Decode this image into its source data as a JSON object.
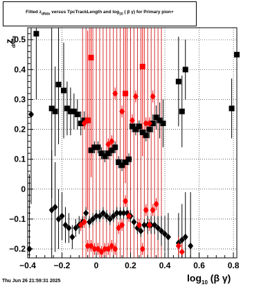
{
  "title": {
    "pre": "Fitted  z",
    "sub": "dNdx",
    "post": "  versus TpcTrackLength and log",
    "sub2": "10",
    "post2": " ( β γ) for Primary pion+"
  },
  "ylabel": {
    "main": "z",
    "sub": "dNdx"
  },
  "xlabel": {
    "main": "log",
    "sub": "10",
    "post": "(β γ)"
  },
  "datestamp": "Thu Jun 26 21:59:31 2025",
  "colors": {
    "black_series": "#000000",
    "red_series": "#ff0000",
    "axis": "#000000",
    "grid": "#000000"
  },
  "chart_data": {
    "type": "scatter",
    "xlim": [
      -0.4,
      0.82
    ],
    "ylim": [
      -0.23,
      0.54
    ],
    "grid": true,
    "x_ticks": [
      -0.4,
      -0.2,
      0,
      0.2,
      0.4,
      0.6,
      0.8
    ],
    "x_tick_labels": [
      "−0.4",
      "−0.2",
      "0",
      "0.2",
      "0.4",
      "0.6",
      "0.8"
    ],
    "y_ticks": [
      -0.2,
      -0.1,
      0,
      0.1,
      0.2,
      0.3,
      0.4,
      0.5
    ],
    "y_tick_labels": [
      "−0.2",
      "−0.1",
      "0",
      "0.1",
      "0.2",
      "0.3",
      "0.4",
      "0.5"
    ],
    "series": [
      {
        "marker": "square",
        "color": "#000000",
        "points": [
          {
            "x": -0.35,
            "y": 0.52,
            "yerr": 0.22
          },
          {
            "x": -0.26,
            "y": 0.27,
            "yerr": 0.3
          },
          {
            "x": -0.24,
            "y": 0.26,
            "yerr": 0.15
          },
          {
            "x": -0.22,
            "y": 0.35,
            "yerr": 0.2
          },
          {
            "x": -0.19,
            "y": 0.33,
            "yerr": 0.16
          },
          {
            "x": -0.17,
            "y": 0.27,
            "yerr": 0.09
          },
          {
            "x": -0.15,
            "y": 0.26,
            "yerr": 0.08
          },
          {
            "x": -0.13,
            "y": 0.26,
            "yerr": 0.06
          },
          {
            "x": -0.11,
            "y": 0.25,
            "yerr": 0.05
          },
          {
            "x": -0.09,
            "y": 0.22,
            "yerr": 0.04
          },
          {
            "x": -0.07,
            "y": 0.23,
            "yerr": 0.03
          },
          {
            "x": -0.05,
            "y": 0.23,
            "yerr": 0.02
          },
          {
            "x": -0.03,
            "y": 0.13,
            "yerr": 0.02
          },
          {
            "x": -0.01,
            "y": 0.14,
            "yerr": 0.02
          },
          {
            "x": 0.01,
            "y": 0.14,
            "yerr": 0.02
          },
          {
            "x": 0.03,
            "y": 0.12,
            "yerr": 0.02
          },
          {
            "x": 0.05,
            "y": 0.11,
            "yerr": 0.02
          },
          {
            "x": 0.07,
            "y": 0.12,
            "yerr": 0.02
          },
          {
            "x": 0.09,
            "y": 0.13,
            "yerr": 0.02
          },
          {
            "x": 0.11,
            "y": 0.14,
            "yerr": 0.02
          },
          {
            "x": 0.13,
            "y": 0.09,
            "yerr": 0.02
          },
          {
            "x": 0.15,
            "y": 0.08,
            "yerr": 0.02
          },
          {
            "x": 0.17,
            "y": 0.09,
            "yerr": 0.02
          },
          {
            "x": 0.19,
            "y": 0.1,
            "yerr": 0.02
          },
          {
            "x": 0.21,
            "y": 0.21,
            "yerr": 0.02
          },
          {
            "x": 0.23,
            "y": 0.2,
            "yerr": 0.02
          },
          {
            "x": 0.25,
            "y": 0.21,
            "yerr": 0.02
          },
          {
            "x": 0.27,
            "y": 0.19,
            "yerr": 0.02
          },
          {
            "x": 0.29,
            "y": 0.18,
            "yerr": 0.02
          },
          {
            "x": 0.31,
            "y": 0.2,
            "yerr": 0.03
          },
          {
            "x": 0.33,
            "y": 0.22,
            "yerr": 0.03
          },
          {
            "x": 0.35,
            "y": 0.24,
            "yerr": 0.04
          },
          {
            "x": 0.37,
            "y": 0.23,
            "yerr": 0.06
          },
          {
            "x": 0.39,
            "y": 0.22,
            "yerr": 0.08
          },
          {
            "x": 0.48,
            "y": 0.36,
            "yerr": 0.15
          },
          {
            "x": 0.5,
            "y": 0.26,
            "yerr": 0.12
          },
          {
            "x": 0.52,
            "y": 0.4,
            "yerr": 0.1
          },
          {
            "x": 0.79,
            "y": 0.27,
            "yerr": 0.1
          },
          {
            "x": 0.82,
            "y": 0.45,
            "yerr": 0.35
          }
        ]
      },
      {
        "marker": "diamond",
        "color": "#000000",
        "points": [
          {
            "x": -0.38,
            "y": 0.25,
            "yerr": 0.3
          },
          {
            "x": -0.39,
            "y": -0.2,
            "yerr": 0.25
          },
          {
            "x": -0.26,
            "y": -0.07,
            "yerr": 0.2
          },
          {
            "x": -0.24,
            "y": -0.06,
            "yerr": 0.15
          },
          {
            "x": -0.22,
            "y": -0.1,
            "yerr": 0.1
          },
          {
            "x": -0.2,
            "y": -0.09,
            "yerr": 0.08
          },
          {
            "x": -0.18,
            "y": -0.12,
            "yerr": 0.06
          },
          {
            "x": -0.16,
            "y": -0.13,
            "yerr": 0.05
          },
          {
            "x": -0.14,
            "y": -0.16,
            "yerr": 0.04
          },
          {
            "x": -0.12,
            "y": -0.13,
            "yerr": 0.03
          },
          {
            "x": -0.1,
            "y": -0.12,
            "yerr": 0.03
          },
          {
            "x": -0.08,
            "y": -0.11,
            "yerr": 0.02
          },
          {
            "x": -0.06,
            "y": -0.08,
            "yerr": 0.02
          },
          {
            "x": -0.04,
            "y": -0.11,
            "yerr": 0.02
          },
          {
            "x": -0.02,
            "y": -0.1,
            "yerr": 0.02
          },
          {
            "x": 0.0,
            "y": -0.09,
            "yerr": 0.02
          },
          {
            "x": 0.02,
            "y": -0.09,
            "yerr": 0.02
          },
          {
            "x": 0.04,
            "y": -0.08,
            "yerr": 0.02
          },
          {
            "x": 0.06,
            "y": -0.09,
            "yerr": 0.02
          },
          {
            "x": 0.08,
            "y": -0.1,
            "yerr": 0.02
          },
          {
            "x": 0.1,
            "y": -0.09,
            "yerr": 0.02
          },
          {
            "x": 0.12,
            "y": -0.08,
            "yerr": 0.02
          },
          {
            "x": 0.14,
            "y": -0.08,
            "yerr": 0.02
          },
          {
            "x": 0.16,
            "y": -0.08,
            "yerr": 0.02
          },
          {
            "x": 0.18,
            "y": -0.08,
            "yerr": 0.02
          },
          {
            "x": 0.2,
            "y": -0.09,
            "yerr": 0.02
          },
          {
            "x": 0.22,
            "y": -0.11,
            "yerr": 0.02
          },
          {
            "x": 0.24,
            "y": -0.13,
            "yerr": 0.02
          },
          {
            "x": 0.26,
            "y": -0.14,
            "yerr": 0.02
          },
          {
            "x": 0.28,
            "y": -0.12,
            "yerr": 0.02
          },
          {
            "x": 0.3,
            "y": -0.12,
            "yerr": 0.03
          },
          {
            "x": 0.32,
            "y": -0.12,
            "yerr": 0.03
          },
          {
            "x": 0.34,
            "y": -0.12,
            "yerr": 0.03
          },
          {
            "x": 0.36,
            "y": -0.13,
            "yerr": 0.04
          },
          {
            "x": 0.38,
            "y": -0.14,
            "yerr": 0.05
          },
          {
            "x": 0.4,
            "y": -0.15,
            "yerr": 0.06
          },
          {
            "x": 0.42,
            "y": -0.16,
            "yerr": 0.08
          },
          {
            "x": 0.48,
            "y": -0.18,
            "yerr": 0.1
          },
          {
            "x": 0.5,
            "y": -0.17,
            "yerr": 0.12
          },
          {
            "x": 0.52,
            "y": -0.16,
            "yerr": 0.15
          },
          {
            "x": 0.55,
            "y": -0.19,
            "yerr": 0.18
          }
        ]
      },
      {
        "marker": "square",
        "color": "#ff0000",
        "points": [
          {
            "x": -0.05,
            "y": 0.23,
            "yerr": 0.3
          },
          {
            "x": -0.03,
            "y": 0.44,
            "yerr": 0.4
          },
          {
            "x": 0.17,
            "y": 0.32,
            "yerr": 0.3
          },
          {
            "x": 0.27,
            "y": 0.41,
            "yerr": 0.3
          }
        ]
      },
      {
        "marker": "diamond",
        "color": "#ff0000",
        "points": [
          {
            "x": -0.07,
            "y": 0.22,
            "yerr": 0.02
          },
          {
            "x": 0.07,
            "y": 0.15,
            "yerr": 0.02
          },
          {
            "x": 0.09,
            "y": 0.16,
            "yerr": 0.02
          },
          {
            "x": 0.11,
            "y": 0.32,
            "yerr": 0.02
          },
          {
            "x": 0.15,
            "y": 0.26,
            "yerr": 0.02
          },
          {
            "x": 0.21,
            "y": 0.23,
            "yerr": 0.02
          },
          {
            "x": 0.23,
            "y": 0.31,
            "yerr": 0.02
          },
          {
            "x": 0.31,
            "y": 0.22,
            "yerr": 0.02
          },
          {
            "x": 0.33,
            "y": 0.31,
            "yerr": 0.02
          },
          {
            "x": 0.29,
            "y": 0.22,
            "yerr": 0.02
          },
          {
            "x": -0.09,
            "y": -0.12,
            "yerr": 0.02
          },
          {
            "x": -0.07,
            "y": -0.11,
            "yerr": 0.02
          },
          {
            "x": -0.05,
            "y": -0.19,
            "yerr": 0.02
          },
          {
            "x": -0.03,
            "y": -0.19,
            "yerr": 0.02
          },
          {
            "x": -0.01,
            "y": -0.2,
            "yerr": 0.02
          },
          {
            "x": 0.01,
            "y": -0.2,
            "yerr": 0.02
          },
          {
            "x": 0.03,
            "y": -0.21,
            "yerr": 0.02
          },
          {
            "x": 0.05,
            "y": -0.2,
            "yerr": 0.02
          },
          {
            "x": 0.07,
            "y": -0.2,
            "yerr": 0.02
          },
          {
            "x": 0.09,
            "y": -0.19,
            "yerr": 0.02
          },
          {
            "x": 0.11,
            "y": -0.2,
            "yerr": 0.02
          },
          {
            "x": 0.13,
            "y": -0.13,
            "yerr": 0.02
          },
          {
            "x": 0.15,
            "y": -0.12,
            "yerr": 0.02
          },
          {
            "x": 0.17,
            "y": -0.04,
            "yerr": 0.02
          },
          {
            "x": 0.19,
            "y": -0.09,
            "yerr": 0.02
          },
          {
            "x": 0.25,
            "y": -0.12,
            "yerr": 0.02
          },
          {
            "x": 0.27,
            "y": -0.2,
            "yerr": 0.02
          },
          {
            "x": 0.29,
            "y": -0.07,
            "yerr": 0.02
          },
          {
            "x": 0.31,
            "y": -0.12,
            "yerr": 0.02
          },
          {
            "x": 0.33,
            "y": -0.07,
            "yerr": 0.02
          },
          {
            "x": 0.35,
            "y": -0.05,
            "yerr": 0.02
          },
          {
            "x": 0.48,
            "y": -0.19,
            "yerr": 0.03
          },
          {
            "x": 0.5,
            "y": -0.21,
            "yerr": 0.03
          }
        ]
      }
    ],
    "vertical_lines": {
      "color": "#cc0000",
      "x": [
        -0.08,
        -0.06,
        -0.04,
        -0.02,
        0.0,
        0.02,
        0.04,
        0.06,
        0.08,
        0.1,
        0.12,
        0.14,
        0.16,
        0.18,
        0.2,
        0.22,
        0.24,
        0.26,
        0.28,
        0.3,
        0.32,
        0.34,
        0.36,
        0.38
      ],
      "ymin": -0.23,
      "ymax": 0.54
    }
  }
}
